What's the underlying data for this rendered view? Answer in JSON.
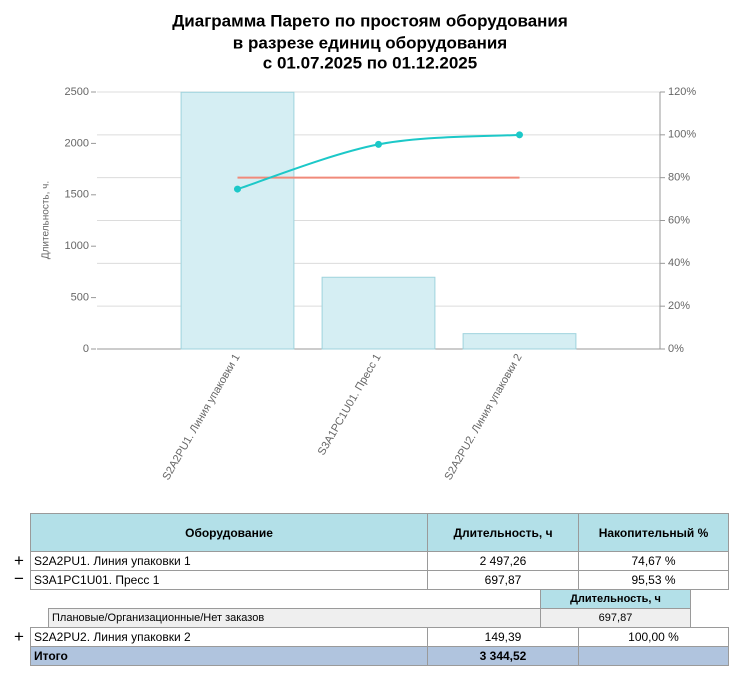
{
  "chart_data": {
    "type": "bar",
    "title": [
      "Диаграмма Парето по простоям оборудования",
      "в разрезе единиц оборудования",
      "с 01.07.2025 по 01.12.2025"
    ],
    "y_label": "Длительность, ч.",
    "categories": [
      "S2A2PU1. Линия упаковки 1",
      "S3A1PC1U01. Пресс 1",
      "S2A2PU2. Линия упаковки 2"
    ],
    "values": [
      2497.26,
      697.87,
      149.39
    ],
    "color": "#d5eef3",
    "cumulative": {
      "values": [
        74.67,
        95.53,
        100
      ],
      "axis": "y2",
      "color": "#1cc8c8"
    },
    "threshold": {
      "value": 80,
      "axis": "y2",
      "color": "#f08a7a"
    },
    "ylim": [
      0,
      2500
    ],
    "yticks": [
      0,
      500,
      1000,
      1500,
      2000,
      2500
    ],
    "y2lim": [
      0,
      120
    ],
    "y2ticks": [
      {
        "value": 0,
        "label": "0%"
      },
      {
        "value": 20,
        "label": "20%"
      },
      {
        "value": 40,
        "label": "40%"
      },
      {
        "value": 60,
        "label": "60%"
      },
      {
        "value": 80,
        "label": "80%"
      },
      {
        "value": 100,
        "label": "100%"
      },
      {
        "value": 120,
        "label": "120%"
      }
    ],
    "grid": true
  },
  "table": {
    "header": [
      "Оборудование",
      "Длительность, ч",
      "Накопительный %"
    ],
    "rows": [
      [
        "S2A2PU1. Линия упаковки 1",
        "2 497,26",
        "74,67 %"
      ],
      [
        "S3A1PC1U01. Пресс 1",
        "697,87",
        "95,53 %"
      ],
      [
        "S2A2PU2. Линия упаковки 2",
        "149,39",
        "100,00 %"
      ]
    ],
    "detail": {
      "header": "Длительность, ч",
      "rows": [
        [
          "Плановые/Организационные/Нет заказов",
          "697,87"
        ]
      ]
    },
    "total": [
      "Итого",
      "3 344,52"
    ]
  }
}
